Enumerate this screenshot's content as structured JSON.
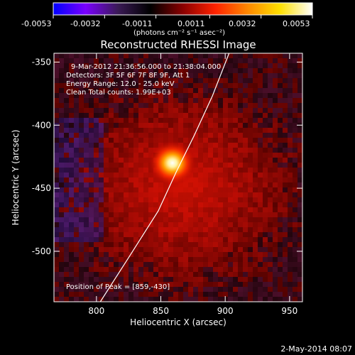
{
  "colorbar": {
    "ticks": [
      "-0.0053",
      "-0.0032",
      "-0.0011",
      "0.0011",
      "0.0032",
      "0.0053"
    ],
    "label": "(photons cm⁻² s⁻¹ asec⁻²)",
    "range": [
      -0.0053,
      0.0053
    ],
    "stops": [
      "#0000ff",
      "#7a00ff",
      "#3a1a55",
      "#000000",
      "#8a0000",
      "#ff2200",
      "#ff8800",
      "#ffe000",
      "#ffffff"
    ]
  },
  "title": "Reconstructed RHESSI Image",
  "info": {
    "time": "9-Mar-2012 21:36:56.000  to 21:38:04.000",
    "detectors": "Detectors: 3F 5F 6F 7F 8F 9F, Att 1",
    "energy": "Energy Range: 12.0 - 25.0 keV",
    "clean": "Clean     Total counts: 1.99E+03"
  },
  "peak_text": "Position of Peak = [859,-430]",
  "footer_date": "2-May-2014 08:07",
  "chart_data": {
    "type": "heatmap",
    "title": "Reconstructed RHESSI Image",
    "xlabel": "Heliocentric X (arcsec)",
    "ylabel": "Heliocentric Y (arcsec)",
    "xlim": [
      767,
      960
    ],
    "ylim": [
      -540,
      -343
    ],
    "xticks": [
      "800",
      "850",
      "900",
      "950"
    ],
    "xtick_values": [
      800,
      850,
      900,
      950
    ],
    "yticks": [
      "-350",
      "-400",
      "-450",
      "-500"
    ],
    "ytick_values": [
      -350,
      -400,
      -450,
      -500
    ],
    "peak": {
      "x": 859,
      "y": -430
    },
    "limb_curve": [
      [
        803,
        -540
      ],
      [
        825,
        -505
      ],
      [
        848,
        -468
      ],
      [
        862,
        -437
      ],
      [
        876,
        -408
      ],
      [
        890,
        -377
      ],
      [
        903,
        -343
      ]
    ]
  }
}
